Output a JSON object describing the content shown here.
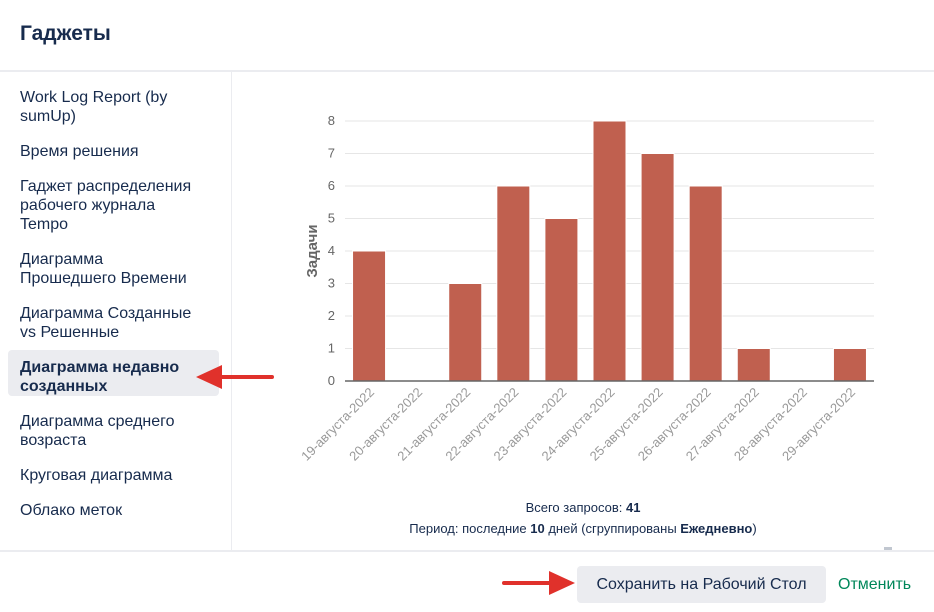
{
  "dialog": {
    "title": "Гаджеты"
  },
  "sidebar": {
    "items": [
      {
        "label": "Work Log Report (by sumUp)",
        "lines": [
          "Work Log Report (by",
          "sumUp)"
        ],
        "active": false
      },
      {
        "label": "Время решения",
        "lines": [
          "Время решения"
        ],
        "active": false
      },
      {
        "label": "Гаджет распределения рабочего журнала Tempo",
        "lines": [
          "Гаджет распределения",
          "рабочего журнала",
          "Tempo"
        ],
        "active": false
      },
      {
        "label": "Диаграмма Прошедшего Времени",
        "lines": [
          "Диаграмма",
          "Прошедшего Времени"
        ],
        "active": false
      },
      {
        "label": "Диаграмма Созданные vs Решенные",
        "lines": [
          "Диаграмма Созданные",
          "vs Решенные"
        ],
        "active": false
      },
      {
        "label": "Диаграмма недавно созданных",
        "lines": [
          "Диаграмма недавно",
          "созданных"
        ],
        "active": true
      },
      {
        "label": "Диаграмма среднего возраста",
        "lines": [
          "Диаграмма среднего",
          "возраста"
        ],
        "active": false
      },
      {
        "label": "Круговая диаграмма",
        "lines": [
          "Круговая диаграмма"
        ],
        "active": false
      },
      {
        "label": "Облако меток",
        "lines": [
          "Облако меток"
        ],
        "active": false
      }
    ]
  },
  "chart_data": {
    "type": "bar",
    "categories": [
      "19-августа-2022",
      "20-августа-2022",
      "21-августа-2022",
      "22-августа-2022",
      "23-августа-2022",
      "24-августа-2022",
      "25-августа-2022",
      "26-августа-2022",
      "27-августа-2022",
      "28-августа-2022",
      "29-августа-2022"
    ],
    "values": [
      4,
      0,
      3,
      6,
      5,
      8,
      7,
      6,
      1,
      0,
      1
    ],
    "ylabel": "Задачи",
    "ylim": [
      0,
      8
    ],
    "yticks": [
      0,
      1,
      2,
      3,
      4,
      5,
      6,
      7,
      8
    ],
    "grid": true,
    "bar_color": "#c0604f"
  },
  "summary": {
    "total_prefix": "Всего запросов: ",
    "total_value": "41",
    "period_prefix": "Период: последние ",
    "period_days": "10",
    "period_middle": " дней (сгруппированы ",
    "period_grouping": "Ежедневно",
    "period_suffix": ")"
  },
  "footer": {
    "save_label": "Сохранить на Рабочий Стол",
    "cancel_label": "Отменить"
  },
  "colors": {
    "accent_green": "#00875a",
    "annotation_red": "#e0312b",
    "active_bg": "#ebecf0"
  }
}
